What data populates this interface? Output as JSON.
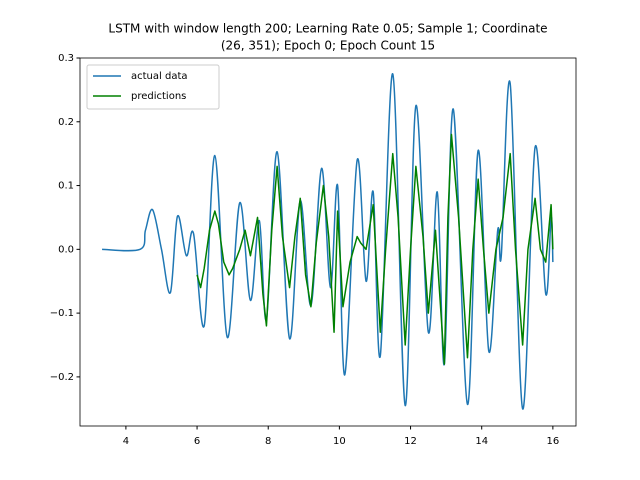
{
  "chart_data": {
    "type": "line",
    "title": [
      "LSTM with window length 200; Learning Rate 0.05; Sample 1; Coordinate",
      "(26, 351); Epoch 0; Epoch Count 15"
    ],
    "xlim": [
      2.71,
      16.65
    ],
    "ylim": [
      -0.277,
      0.3
    ],
    "xticks": [
      4,
      6,
      8,
      10,
      12,
      14,
      16
    ],
    "yticks": [
      {
        "value": -0.2,
        "label": "−0.2"
      },
      {
        "value": -0.1,
        "label": "−0.1"
      },
      {
        "value": 0,
        "label": "0.0"
      },
      0.1,
      0.2,
      0.3
    ],
    "grid": false,
    "legend": "upper left",
    "series": [
      {
        "name": "actual data",
        "color": "#1f77b4",
        "smooth": true,
        "x": [
          3.33,
          4.4,
          4.55,
          4.75,
          5.0,
          5.25,
          5.45,
          5.7,
          5.9,
          6.2,
          6.5,
          6.85,
          7.2,
          7.5,
          7.75,
          7.95,
          8.25,
          8.6,
          8.9,
          9.2,
          9.5,
          9.75,
          9.95,
          10.15,
          10.5,
          10.75,
          10.95,
          11.15,
          11.5,
          11.85,
          12.15,
          12.5,
          12.75,
          12.95,
          13.2,
          13.6,
          13.9,
          14.2,
          14.45,
          14.55,
          14.8,
          15.15,
          15.5,
          15.8,
          15.95,
          16.0
        ],
        "values": [
          0,
          0,
          0.03,
          0.062,
          0.0,
          -0.068,
          0.052,
          -0.01,
          0.025,
          -0.12,
          0.147,
          -0.138,
          0.073,
          -0.08,
          0.045,
          -0.11,
          0.153,
          -0.14,
          0.076,
          -0.088,
          0.127,
          -0.06,
          0.1,
          -0.197,
          0.14,
          -0.05,
          0.09,
          -0.167,
          0.275,
          -0.245,
          0.225,
          -0.13,
          0.09,
          -0.18,
          0.22,
          -0.243,
          0.155,
          -0.16,
          0.03,
          -0.01,
          0.26,
          -0.25,
          0.16,
          -0.07,
          0.05,
          -0.02
        ]
      },
      {
        "name": "predictions",
        "color": "#008000",
        "smooth": false,
        "x": [
          6.0,
          6.1,
          6.2,
          6.35,
          6.5,
          6.6,
          6.75,
          6.9,
          7.0,
          7.2,
          7.35,
          7.5,
          7.7,
          7.85,
          7.95,
          8.1,
          8.25,
          8.4,
          8.6,
          8.75,
          8.9,
          9.05,
          9.2,
          9.35,
          9.55,
          9.7,
          9.85,
          9.95,
          10.1,
          10.3,
          10.5,
          10.6,
          10.75,
          10.95,
          11.15,
          11.3,
          11.5,
          11.65,
          11.85,
          12.0,
          12.15,
          12.35,
          12.5,
          12.7,
          12.95,
          13.05,
          13.15,
          13.35,
          13.6,
          13.75,
          13.9,
          14.05,
          14.2,
          14.4,
          14.6,
          14.8,
          14.95,
          15.15,
          15.3,
          15.5,
          15.65,
          15.8,
          15.95,
          16.0
        ],
        "values": [
          -0.04,
          -0.06,
          -0.03,
          0.03,
          0.06,
          0.04,
          -0.02,
          -0.04,
          -0.03,
          0.0,
          0.03,
          -0.01,
          0.05,
          -0.07,
          -0.12,
          0.03,
          0.13,
          0.02,
          -0.06,
          0.02,
          0.08,
          -0.04,
          -0.09,
          0.01,
          0.1,
          0.02,
          -0.13,
          0.06,
          -0.09,
          -0.02,
          0.02,
          0.01,
          0.0,
          0.07,
          -0.13,
          0.0,
          0.15,
          0.05,
          -0.15,
          0.0,
          0.13,
          0.02,
          -0.1,
          0.03,
          -0.18,
          0.05,
          0.18,
          0.05,
          -0.17,
          0.0,
          0.11,
          0.0,
          -0.1,
          0.0,
          0.05,
          0.15,
          0.0,
          -0.15,
          0.0,
          0.08,
          0.0,
          -0.02,
          0.07,
          0.0
        ]
      }
    ]
  }
}
